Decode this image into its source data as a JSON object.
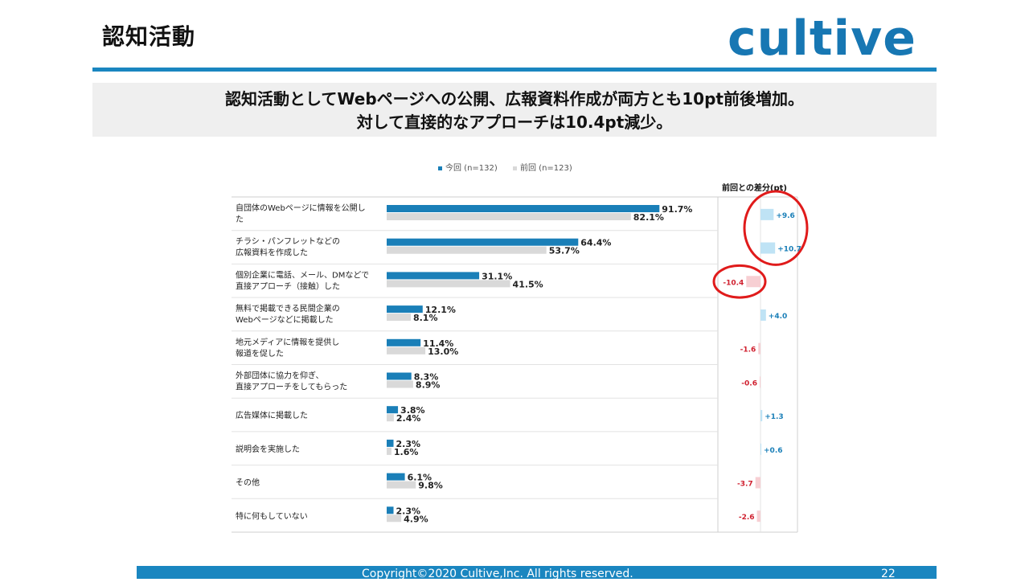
{
  "header": {
    "title": "認知活動",
    "logo_text": "cultive"
  },
  "summary": {
    "line1": "認知活動としてWebページへの公開、広報資料作成が両方とも10pt前後増加。",
    "line2": "対して直接的なアプローチは10.4pt減少。"
  },
  "footer": {
    "copyright": "Copyright©2020 Cultive,Inc. All rights reserved.",
    "page_number": "22"
  },
  "chart_data": {
    "type": "bar",
    "orientation": "horizontal",
    "categories": [
      [
        "自団体のWebページに情報を公開し",
        "た"
      ],
      [
        "チラシ・パンフレットなどの",
        "広報資料を作成した"
      ],
      [
        "個別企業に電話、メール、DMなどで",
        "直接アプローチ（接触）した"
      ],
      [
        "無料で掲載できる民間企業の",
        "Webページなどに掲載した"
      ],
      [
        "地元メディアに情報を提供し",
        "報道を促した"
      ],
      [
        "外部団体に協力を仰ぎ、",
        "直接アプローチをしてもらった"
      ],
      [
        "広告媒体に掲載した"
      ],
      [
        "説明会を実施した"
      ],
      [
        "その他"
      ],
      [
        "特に何もしていない"
      ]
    ],
    "series": [
      {
        "name": "今回 (n=132)",
        "color": "#1a7fb8",
        "values": [
          91.7,
          64.4,
          31.1,
          12.1,
          11.4,
          8.3,
          3.8,
          2.3,
          6.1,
          2.3
        ]
      },
      {
        "name": "前回 (n=123)",
        "color": "#d9d9d9",
        "values": [
          82.1,
          53.7,
          41.5,
          8.1,
          13.0,
          8.9,
          2.4,
          1.6,
          9.8,
          4.9
        ]
      }
    ],
    "value_labels": [
      [
        "91.7%",
        "64.4%",
        "31.1%",
        "12.1%",
        "11.4%",
        "8.3%",
        "3.8%",
        "2.3%",
        "6.1%",
        "2.3%"
      ],
      [
        "82.1%",
        "53.7%",
        "41.5%",
        "8.1%",
        "13.0%",
        "8.9%",
        "2.4%",
        "1.6%",
        "9.8%",
        "4.9%"
      ]
    ],
    "xlim": [
      0,
      100
    ],
    "legend_position": "top",
    "diff": {
      "title": "前回との差分(pt)",
      "values": [
        9.6,
        10.7,
        -10.4,
        4.0,
        -1.6,
        -0.6,
        1.3,
        0.6,
        -3.7,
        -2.6
      ],
      "labels": [
        "+9.6",
        "+10.7",
        "-10.4",
        "+4.0",
        "-1.6",
        "-0.6",
        "+1.3",
        "+0.6",
        "-3.7",
        "-2.6"
      ],
      "positive_color": "#bfe3f5",
      "negative_color": "#f7cfd3",
      "positive_text_color": "#1a7fb8",
      "negative_text_color": "#d0202f",
      "highlighted_rows": [
        0,
        1,
        2
      ],
      "highlight_color": "#e01b1b"
    },
    "gridlines": false
  }
}
